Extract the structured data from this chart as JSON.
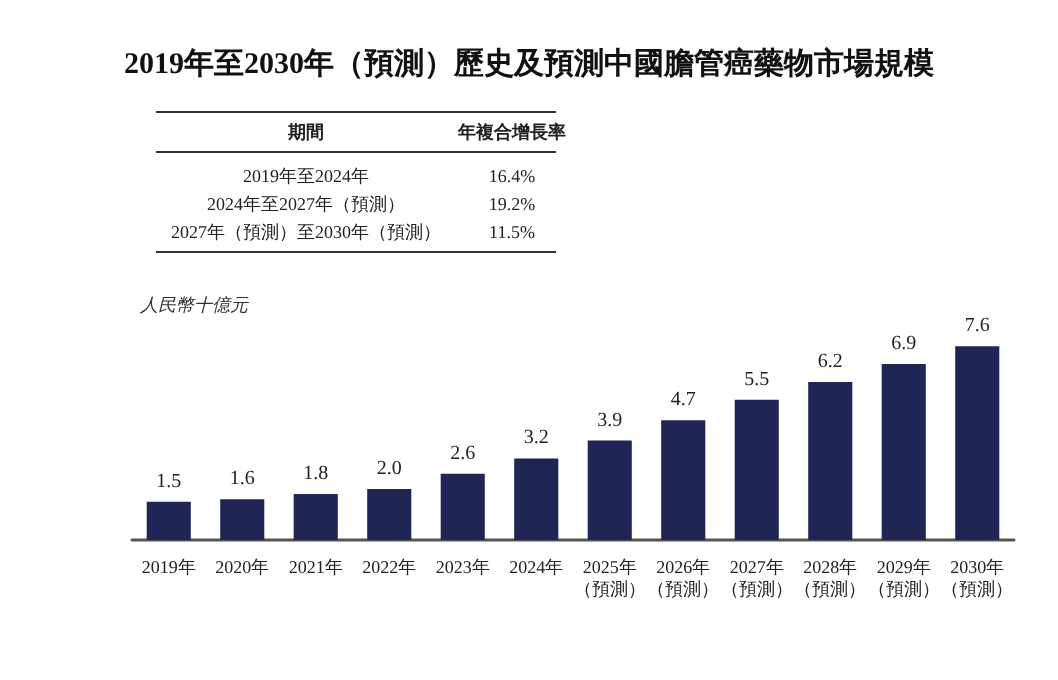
{
  "chart_data": {
    "type": "bar",
    "title": "2019年至2030年（預測）歷史及預測中國膽管癌藥物市場規模",
    "ylabel": "人民幣十億元",
    "categories": [
      "2019年",
      "2020年",
      "2021年",
      "2022年",
      "2023年",
      "2024年",
      "2025年（預測）",
      "2026年（預測）",
      "2027年（預測）",
      "2028年（預測）",
      "2029年（預測）",
      "2030年（預測）"
    ],
    "values": [
      1.5,
      1.6,
      1.8,
      2.0,
      2.6,
      3.2,
      3.9,
      4.7,
      5.5,
      6.2,
      6.9,
      7.6
    ],
    "value_labels": [
      "1.5",
      "1.6",
      "1.8",
      "2.0",
      "2.6",
      "3.2",
      "3.9",
      "4.7",
      "5.5",
      "6.2",
      "6.9",
      "7.6"
    ],
    "color": "#1f2555",
    "annotations": [
      "期間",
      "年複合增長率",
      "2019年至2024年",
      "16.4%",
      "2024年至2027年（預測）",
      "19.2%",
      "2027年（預測）至2030年（預測）",
      "11.5%"
    ]
  }
}
